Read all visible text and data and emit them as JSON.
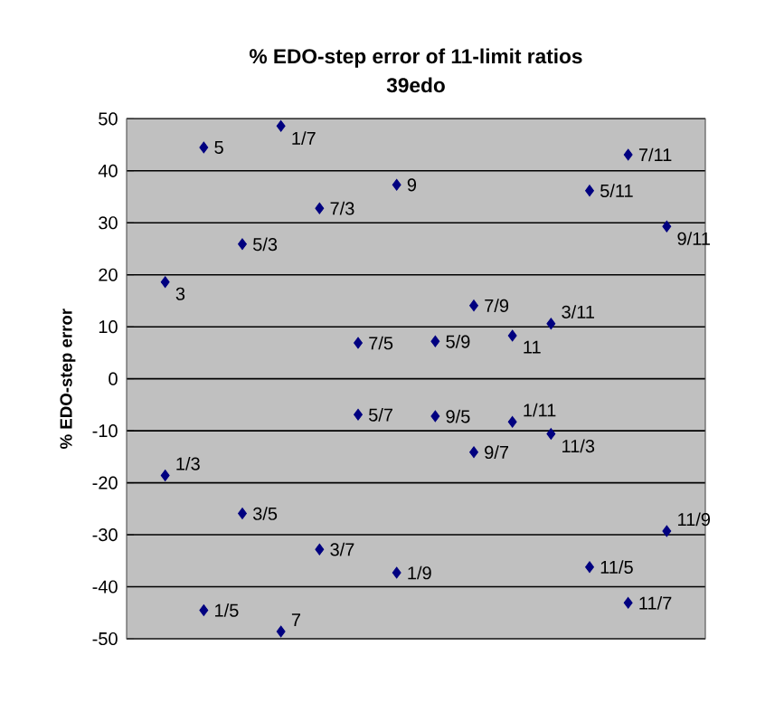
{
  "chart_data": {
    "type": "scatter",
    "title": "% EDO-step error of 11-limit ratios",
    "subtitle": "39edo",
    "ylabel": "% EDO-step error",
    "categories": [
      null,
      null,
      null,
      null,
      null,
      null,
      null,
      null,
      null,
      null,
      null,
      null,
      null,
      null
    ],
    "series": [
      {
        "color": "#000080",
        "values": [
          18.6,
          44.5,
          25.9,
          48.6,
          32.8,
          6.9,
          37.3,
          7.2,
          14.1,
          8.3,
          10.6,
          36.2,
          43.1,
          29.3
        ]
      },
      {
        "color": "#000080",
        "values": [
          -18.6,
          -44.5,
          -25.9,
          -48.6,
          -32.8,
          -6.9,
          -37.3,
          -7.2,
          -14.1,
          -8.3,
          -10.6,
          -36.2,
          -43.1,
          -29.3
        ]
      }
    ],
    "annotations": [
      "3",
      "5",
      "5/3",
      "1/7",
      "7/3",
      "7/5",
      "9",
      "5/9",
      "7/9",
      "11",
      "3/11",
      "5/11",
      "7/11",
      "9/11",
      "1/3",
      "1/5",
      "3/5",
      "7",
      "3/7",
      "5/7",
      "1/9",
      "9/5",
      "9/7",
      "1/11",
      "11/3",
      "11/5",
      "11/7",
      "11/9"
    ],
    "marker": "diamond",
    "grid": "y",
    "tick_labels": "y",
    "ylim": [
      -50,
      50
    ],
    "yticks": [
      -50,
      -40,
      -30,
      -20,
      -10,
      0,
      10,
      20,
      30,
      40,
      50
    ]
  }
}
